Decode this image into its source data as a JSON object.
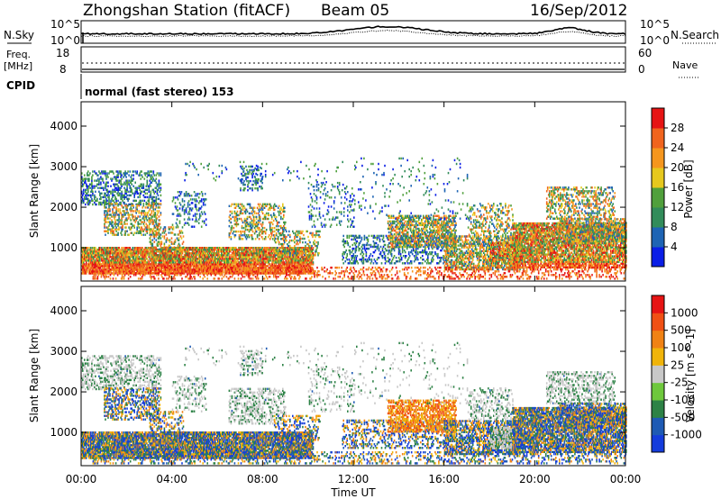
{
  "header": {
    "station": "Zhongshan Station (fitACF)",
    "beam": "Beam 05",
    "date": "16/Sep/2012"
  },
  "noise_panel": {
    "left_label": "N.Sky",
    "right_label": "N.Search",
    "left_ticks": [
      "10^5",
      "10^0"
    ],
    "right_ticks": [
      "10^5",
      "10^0"
    ]
  },
  "freq_panel": {
    "left_label_1": "Freq.",
    "left_label_2": "[MHz]",
    "left_ticks": [
      "18",
      "8"
    ],
    "right_label": "Nave",
    "right_ticks": [
      "60",
      "0"
    ]
  },
  "cpid_panel": {
    "label": "CPID",
    "text": "normal (fast stereo) 153"
  },
  "chart_data": [
    {
      "type": "heatmap",
      "name": "power",
      "ylabel": "Slant Range [km]",
      "yticks": [
        1000,
        2000,
        3000,
        4000
      ],
      "ylim": [
        180,
        4600
      ],
      "colorbar_label": "Power [dB]",
      "colorbar_ticks": [
        "28",
        "24",
        "20",
        "16",
        "12",
        "8",
        "4"
      ],
      "colors": [
        "#0a1ee6",
        "#1e64b4",
        "#328c5a",
        "#50a03c",
        "#e6c81e",
        "#f5961e",
        "#f0641e",
        "#e61414"
      ]
    },
    {
      "type": "heatmap",
      "name": "velocity",
      "ylabel": "Slant Range [km]",
      "yticks": [
        1000,
        2000,
        3000,
        4000
      ],
      "ylim": [
        180,
        4600
      ],
      "colorbar_label": "Velocity [m s^-1]",
      "colorbar_ticks": [
        "1000",
        "500",
        "100",
        "25",
        "-25",
        "-100",
        "-500",
        "-1000"
      ],
      "colors": [
        "#143cdc",
        "#1e5ab4",
        "#2d8246",
        "#6ec83c",
        "#c8c8c8",
        "#f0b40a",
        "#f08214",
        "#f05014",
        "#e61414"
      ],
      "xlabel": "Time UT",
      "xticks": [
        "00:00",
        "04:00",
        "08:00",
        "12:00",
        "16:00",
        "20:00",
        "00:00"
      ]
    }
  ]
}
